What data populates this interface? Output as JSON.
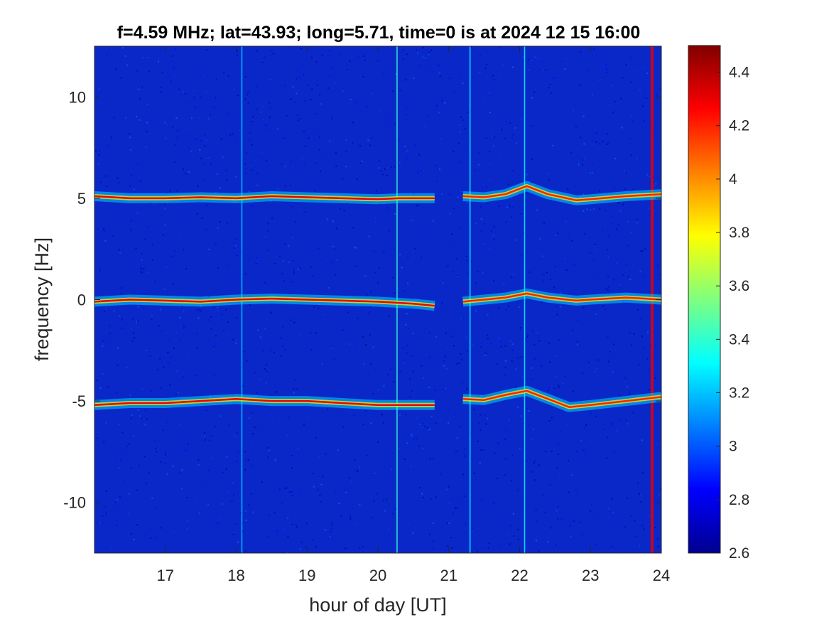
{
  "chart_data": {
    "type": "heatmap",
    "title": "f=4.59 MHz;  lat=43.93; long=5.71, time=0 is at 2024 12 15 16:00",
    "xlabel": "hour of day [UT]",
    "ylabel": "frequency [Hz]",
    "xlim": [
      16,
      24
    ],
    "ylim": [
      -12.5,
      12.5
    ],
    "x_ticks": [
      17,
      18,
      19,
      20,
      21,
      22,
      23,
      24
    ],
    "x_tick_labels": [
      "17",
      "18",
      "19",
      "20",
      "21",
      "22",
      "23",
      "24"
    ],
    "y_ticks": [
      10,
      5,
      0,
      -5,
      -10
    ],
    "y_tick_labels": [
      "10",
      "5",
      "0",
      "-5",
      "-10"
    ],
    "colorbar": {
      "colormap": "jet",
      "clim": [
        2.6,
        4.5
      ],
      "ticks": [
        4.4,
        4.2,
        4,
        3.8,
        3.6,
        3.4,
        3.2,
        3,
        2.8,
        2.6
      ],
      "tick_labels": [
        "4.4",
        "4.2",
        "4",
        "3.8",
        "3.6",
        "3.4",
        "3.2",
        "3",
        "2.8",
        "2.6"
      ],
      "location": "right"
    },
    "background_level": 2.7,
    "traces": [
      {
        "points": [
          [
            16.0,
            5.1
          ],
          [
            16.5,
            5.0
          ],
          [
            17.0,
            5.0
          ],
          [
            17.5,
            5.05
          ],
          [
            18.0,
            5.0
          ],
          [
            18.5,
            5.1
          ],
          [
            19.0,
            5.05
          ],
          [
            19.5,
            5.0
          ],
          [
            20.0,
            4.95
          ],
          [
            20.3,
            5.0
          ],
          [
            20.8,
            5.0
          ]
        ],
        "level": 4.3
      },
      {
        "points": [
          [
            21.2,
            5.1
          ],
          [
            21.5,
            5.05
          ],
          [
            21.8,
            5.2
          ],
          [
            22.1,
            5.6
          ],
          [
            22.4,
            5.2
          ],
          [
            22.8,
            4.9
          ],
          [
            23.0,
            4.95
          ],
          [
            23.5,
            5.1
          ],
          [
            24.0,
            5.2
          ]
        ],
        "level": 4.2
      },
      {
        "points": [
          [
            16.0,
            -0.1
          ],
          [
            16.5,
            0.0
          ],
          [
            17.0,
            -0.05
          ],
          [
            17.5,
            -0.1
          ],
          [
            18.0,
            0.0
          ],
          [
            18.5,
            0.05
          ],
          [
            19.0,
            0.0
          ],
          [
            19.5,
            -0.05
          ],
          [
            20.0,
            -0.1
          ],
          [
            20.5,
            -0.2
          ],
          [
            20.8,
            -0.3
          ]
        ],
        "level": 4.3
      },
      {
        "points": [
          [
            21.2,
            -0.1
          ],
          [
            21.5,
            0.0
          ],
          [
            21.8,
            0.1
          ],
          [
            22.1,
            0.3
          ],
          [
            22.4,
            0.1
          ],
          [
            22.8,
            -0.05
          ],
          [
            23.0,
            0.0
          ],
          [
            23.5,
            0.1
          ],
          [
            24.0,
            0.0
          ]
        ],
        "level": 4.2
      },
      {
        "points": [
          [
            16.0,
            -5.2
          ],
          [
            16.5,
            -5.1
          ],
          [
            17.0,
            -5.1
          ],
          [
            17.5,
            -5.0
          ],
          [
            18.0,
            -4.9
          ],
          [
            18.5,
            -5.0
          ],
          [
            19.0,
            -5.0
          ],
          [
            19.5,
            -5.1
          ],
          [
            20.0,
            -5.2
          ],
          [
            20.5,
            -5.2
          ],
          [
            20.8,
            -5.2
          ]
        ],
        "level": 4.3
      },
      {
        "points": [
          [
            21.2,
            -4.9
          ],
          [
            21.5,
            -4.95
          ],
          [
            21.8,
            -4.7
          ],
          [
            22.1,
            -4.5
          ],
          [
            22.4,
            -4.9
          ],
          [
            22.7,
            -5.3
          ],
          [
            23.0,
            -5.2
          ],
          [
            23.5,
            -5.0
          ],
          [
            24.0,
            -4.8
          ]
        ],
        "level": 4.2
      }
    ],
    "vertical_streaks": [
      {
        "x": 18.08,
        "level": 3.2
      },
      {
        "x": 20.27,
        "level": 3.4
      },
      {
        "x": 21.3,
        "level": 3.3
      },
      {
        "x": 22.07,
        "level": 3.3
      },
      {
        "x": 23.87,
        "level": 4.3
      }
    ]
  }
}
